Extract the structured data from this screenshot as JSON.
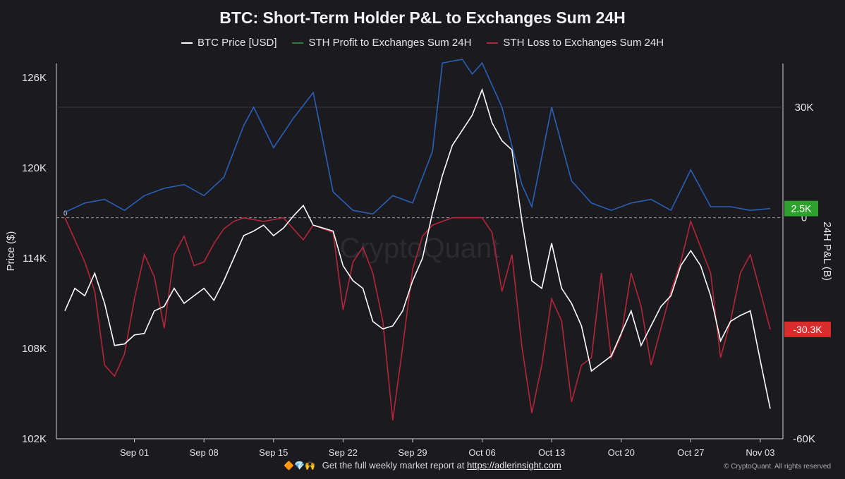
{
  "title": "BTC: Short-Term Holder P&L to Exchanges Sum 24H",
  "legend": [
    {
      "label": "BTC Price [USD]",
      "color": "#ffffff"
    },
    {
      "label": "STH Profit to Exchanges Sum 24H",
      "color": "#2e7d3a"
    },
    {
      "label": "STH Loss to Exchanges Sum 24H",
      "color": "#b5243b"
    }
  ],
  "footer": {
    "icons": "🔶💎🙌",
    "text": "Get the full weekly market report at",
    "link": "https://adlerinsight.com"
  },
  "copyright": "© CryptoQuant. All rights reserved",
  "watermark": "CryptoQuant",
  "chart_data": {
    "type": "line",
    "title": "BTC: Short-Term Holder P&L to Exchanges Sum 24H",
    "xlabel": "",
    "ylabel": "Price ($)",
    "y2label": "24H P&L (B)",
    "xlim": [
      "2025-08-25",
      "2025-11-04"
    ],
    "x_ticks": [
      "Sep 01",
      "Sep 08",
      "Sep 15",
      "Sep 22",
      "Sep 29",
      "Oct 06",
      "Oct 13",
      "Oct 20",
      "Oct 27",
      "Nov 03"
    ],
    "ylim": [
      102000,
      126000
    ],
    "y_ticks": [
      {
        "value": 126000,
        "label": "126K"
      },
      {
        "value": 120000,
        "label": "120K"
      },
      {
        "value": 114000,
        "label": "114K"
      },
      {
        "value": 108000,
        "label": "108K"
      },
      {
        "value": 102000,
        "label": "102K"
      }
    ],
    "y2lim": [
      -60000,
      39000
    ],
    "y2_ticks": [
      {
        "value": 30000,
        "label": "30K"
      },
      {
        "value": 0,
        "label": "0"
      },
      {
        "value": -60000,
        "label": "-60K"
      }
    ],
    "zero_line_label": "0",
    "grid": "horizontal at 30K",
    "legend_position": "top-center",
    "badges": [
      {
        "label": "2.5K",
        "value": 2500,
        "color": "#2ea12e"
      },
      {
        "label": "-30.3K",
        "value": -30300,
        "color": "#d92d2d"
      }
    ],
    "series": [
      {
        "name": "BTC Price [USD]",
        "axis": "left",
        "color": "#ffffff",
        "points": [
          [
            "2025-08-25",
            110500
          ],
          [
            "2025-08-26",
            112000
          ],
          [
            "2025-08-27",
            111500
          ],
          [
            "2025-08-28",
            113000
          ],
          [
            "2025-08-29",
            111000
          ],
          [
            "2025-08-30",
            108200
          ],
          [
            "2025-08-31",
            108300
          ],
          [
            "2025-09-01",
            108900
          ],
          [
            "2025-09-02",
            109000
          ],
          [
            "2025-09-03",
            110500
          ],
          [
            "2025-09-04",
            110800
          ],
          [
            "2025-09-05",
            112000
          ],
          [
            "2025-09-06",
            111000
          ],
          [
            "2025-09-07",
            111500
          ],
          [
            "2025-09-08",
            112000
          ],
          [
            "2025-09-09",
            111200
          ],
          [
            "2025-09-10",
            112500
          ],
          [
            "2025-09-11",
            114000
          ],
          [
            "2025-09-12",
            115500
          ],
          [
            "2025-09-13",
            115800
          ],
          [
            "2025-09-14",
            116200
          ],
          [
            "2025-09-15",
            115500
          ],
          [
            "2025-09-16",
            116000
          ],
          [
            "2025-09-17",
            116800
          ],
          [
            "2025-09-18",
            117500
          ],
          [
            "2025-09-19",
            116200
          ],
          [
            "2025-09-20",
            116000
          ],
          [
            "2025-09-21",
            115800
          ],
          [
            "2025-09-22",
            113500
          ],
          [
            "2025-09-23",
            112500
          ],
          [
            "2025-09-24",
            112000
          ],
          [
            "2025-09-25",
            109800
          ],
          [
            "2025-09-26",
            109300
          ],
          [
            "2025-09-27",
            109500
          ],
          [
            "2025-09-28",
            110500
          ],
          [
            "2025-09-29",
            112500
          ],
          [
            "2025-09-30",
            114000
          ],
          [
            "2025-10-01",
            117000
          ],
          [
            "2025-10-02",
            119500
          ],
          [
            "2025-10-03",
            121500
          ],
          [
            "2025-10-04",
            122500
          ],
          [
            "2025-10-05",
            123500
          ],
          [
            "2025-10-06",
            125200
          ],
          [
            "2025-10-07",
            123000
          ],
          [
            "2025-10-08",
            121800
          ],
          [
            "2025-10-09",
            121200
          ],
          [
            "2025-10-10",
            116500
          ],
          [
            "2025-10-11",
            112500
          ],
          [
            "2025-10-12",
            112000
          ],
          [
            "2025-10-13",
            115000
          ],
          [
            "2025-10-14",
            112000
          ],
          [
            "2025-10-15",
            111000
          ],
          [
            "2025-10-16",
            109500
          ],
          [
            "2025-10-17",
            106500
          ],
          [
            "2025-10-18",
            107000
          ],
          [
            "2025-10-19",
            107500
          ],
          [
            "2025-10-20",
            109000
          ],
          [
            "2025-10-21",
            110500
          ],
          [
            "2025-10-22",
            108200
          ],
          [
            "2025-10-23",
            109500
          ],
          [
            "2025-10-24",
            110800
          ],
          [
            "2025-10-25",
            111500
          ],
          [
            "2025-10-26",
            113500
          ],
          [
            "2025-10-27",
            114500
          ],
          [
            "2025-10-28",
            113500
          ],
          [
            "2025-10-29",
            111500
          ],
          [
            "2025-10-30",
            108500
          ],
          [
            "2025-10-31",
            109800
          ],
          [
            "2025-11-01",
            110200
          ],
          [
            "2025-11-02",
            110500
          ],
          [
            "2025-11-03",
            107200
          ],
          [
            "2025-11-04",
            104000
          ]
        ]
      },
      {
        "name": "STH Profit to Exchanges Sum 24H",
        "axis": "right",
        "color": "#2e7d3a",
        "points": [
          [
            "2025-08-25",
            1500
          ],
          [
            "2025-08-27",
            4000
          ],
          [
            "2025-08-29",
            5000
          ],
          [
            "2025-08-31",
            2000
          ],
          [
            "2025-09-02",
            6000
          ],
          [
            "2025-09-04",
            8000
          ],
          [
            "2025-09-06",
            9000
          ],
          [
            "2025-09-08",
            6000
          ],
          [
            "2025-09-10",
            11000
          ],
          [
            "2025-09-12",
            25000
          ],
          [
            "2025-09-13",
            30000
          ],
          [
            "2025-09-15",
            19000
          ],
          [
            "2025-09-17",
            27000
          ],
          [
            "2025-09-19",
            34000
          ],
          [
            "2025-09-21",
            7000
          ],
          [
            "2025-09-23",
            2000
          ],
          [
            "2025-09-25",
            1000
          ],
          [
            "2025-09-27",
            6000
          ],
          [
            "2025-09-29",
            4000
          ],
          [
            "2025-10-01",
            18000
          ],
          [
            "2025-10-02",
            42000
          ],
          [
            "2025-10-04",
            43000
          ],
          [
            "2025-10-05",
            39000
          ],
          [
            "2025-10-06",
            42000
          ],
          [
            "2025-10-08",
            30000
          ],
          [
            "2025-10-10",
            9000
          ],
          [
            "2025-10-11",
            3000
          ],
          [
            "2025-10-13",
            30000
          ],
          [
            "2025-10-15",
            10000
          ],
          [
            "2025-10-17",
            4000
          ],
          [
            "2025-10-19",
            2000
          ],
          [
            "2025-10-21",
            4000
          ],
          [
            "2025-10-23",
            5000
          ],
          [
            "2025-10-25",
            2000
          ],
          [
            "2025-10-27",
            13000
          ],
          [
            "2025-10-29",
            3000
          ],
          [
            "2025-10-31",
            3000
          ],
          [
            "2025-11-02",
            2000
          ],
          [
            "2025-11-04",
            2500
          ]
        ]
      },
      {
        "name": "STH Loss to Exchanges Sum 24H",
        "axis": "right",
        "color": "#b5243b",
        "points": [
          [
            "2025-08-25",
            0
          ],
          [
            "2025-08-26",
            -6000
          ],
          [
            "2025-08-27",
            -12000
          ],
          [
            "2025-08-28",
            -20000
          ],
          [
            "2025-08-29",
            -40000
          ],
          [
            "2025-08-30",
            -43000
          ],
          [
            "2025-08-31",
            -37000
          ],
          [
            "2025-09-01",
            -22000
          ],
          [
            "2025-09-02",
            -10000
          ],
          [
            "2025-09-03",
            -16000
          ],
          [
            "2025-09-04",
            -30000
          ],
          [
            "2025-09-05",
            -10000
          ],
          [
            "2025-09-06",
            -5000
          ],
          [
            "2025-09-07",
            -13000
          ],
          [
            "2025-09-08",
            -12000
          ],
          [
            "2025-09-09",
            -7000
          ],
          [
            "2025-09-10",
            -3000
          ],
          [
            "2025-09-11",
            -1000
          ],
          [
            "2025-09-12",
            0
          ],
          [
            "2025-09-14",
            -1000
          ],
          [
            "2025-09-16",
            0
          ],
          [
            "2025-09-18",
            -6000
          ],
          [
            "2025-09-19",
            -2000
          ],
          [
            "2025-09-21",
            -4000
          ],
          [
            "2025-09-22",
            -25000
          ],
          [
            "2025-09-23",
            -12000
          ],
          [
            "2025-09-24",
            -8000
          ],
          [
            "2025-09-25",
            -15000
          ],
          [
            "2025-09-26",
            -28000
          ],
          [
            "2025-09-27",
            -55000
          ],
          [
            "2025-09-28",
            -35000
          ],
          [
            "2025-09-29",
            -14000
          ],
          [
            "2025-09-30",
            -5000
          ],
          [
            "2025-10-01",
            -2000
          ],
          [
            "2025-10-03",
            0
          ],
          [
            "2025-10-06",
            0
          ],
          [
            "2025-10-07",
            -4000
          ],
          [
            "2025-10-08",
            -20000
          ],
          [
            "2025-10-09",
            -10000
          ],
          [
            "2025-10-10",
            -35000
          ],
          [
            "2025-10-11",
            -53000
          ],
          [
            "2025-10-12",
            -40000
          ],
          [
            "2025-10-13",
            -22000
          ],
          [
            "2025-10-14",
            -28000
          ],
          [
            "2025-10-15",
            -50000
          ],
          [
            "2025-10-16",
            -40000
          ],
          [
            "2025-10-17",
            -38000
          ],
          [
            "2025-10-18",
            -15000
          ],
          [
            "2025-10-19",
            -38000
          ],
          [
            "2025-10-20",
            -32000
          ],
          [
            "2025-10-21",
            -15000
          ],
          [
            "2025-10-22",
            -24000
          ],
          [
            "2025-10-23",
            -40000
          ],
          [
            "2025-10-24",
            -30000
          ],
          [
            "2025-10-25",
            -20000
          ],
          [
            "2025-10-26",
            -12000
          ],
          [
            "2025-10-27",
            -1000
          ],
          [
            "2025-10-28",
            -8000
          ],
          [
            "2025-10-29",
            -15000
          ],
          [
            "2025-10-30",
            -38000
          ],
          [
            "2025-10-31",
            -28000
          ],
          [
            "2025-11-01",
            -15000
          ],
          [
            "2025-11-02",
            -10000
          ],
          [
            "2025-11-03",
            -20000
          ],
          [
            "2025-11-04",
            -30300
          ]
        ]
      }
    ]
  }
}
